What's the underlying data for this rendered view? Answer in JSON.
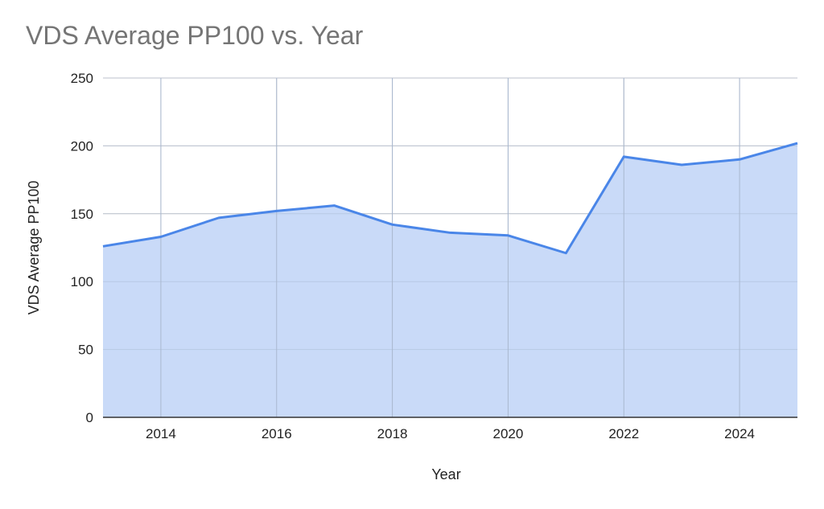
{
  "chart_data": {
    "type": "area",
    "title": "VDS Average PP100 vs. Year",
    "xlabel": "Year",
    "ylabel": "VDS Average PP100",
    "xlim": [
      2013,
      2025
    ],
    "ylim": [
      0,
      250
    ],
    "x_ticks": [
      "2014",
      "2016",
      "2018",
      "2020",
      "2022",
      "2024"
    ],
    "y_ticks": [
      "0",
      "50",
      "100",
      "150",
      "200",
      "250"
    ],
    "grid": true,
    "legend": "none",
    "series": [
      {
        "x": [
          2013,
          2014,
          2015,
          2016,
          2017,
          2018,
          2019,
          2020,
          2021,
          2022,
          2023,
          2024,
          2025
        ],
        "values": [
          126,
          133,
          147,
          152,
          156,
          142,
          136,
          134,
          121,
          192,
          186,
          190,
          202
        ]
      }
    ],
    "colors": {
      "line": "#4a86e8",
      "fill": "#c9daf8",
      "grid": "#cccccc",
      "axis": "#333333"
    }
  }
}
